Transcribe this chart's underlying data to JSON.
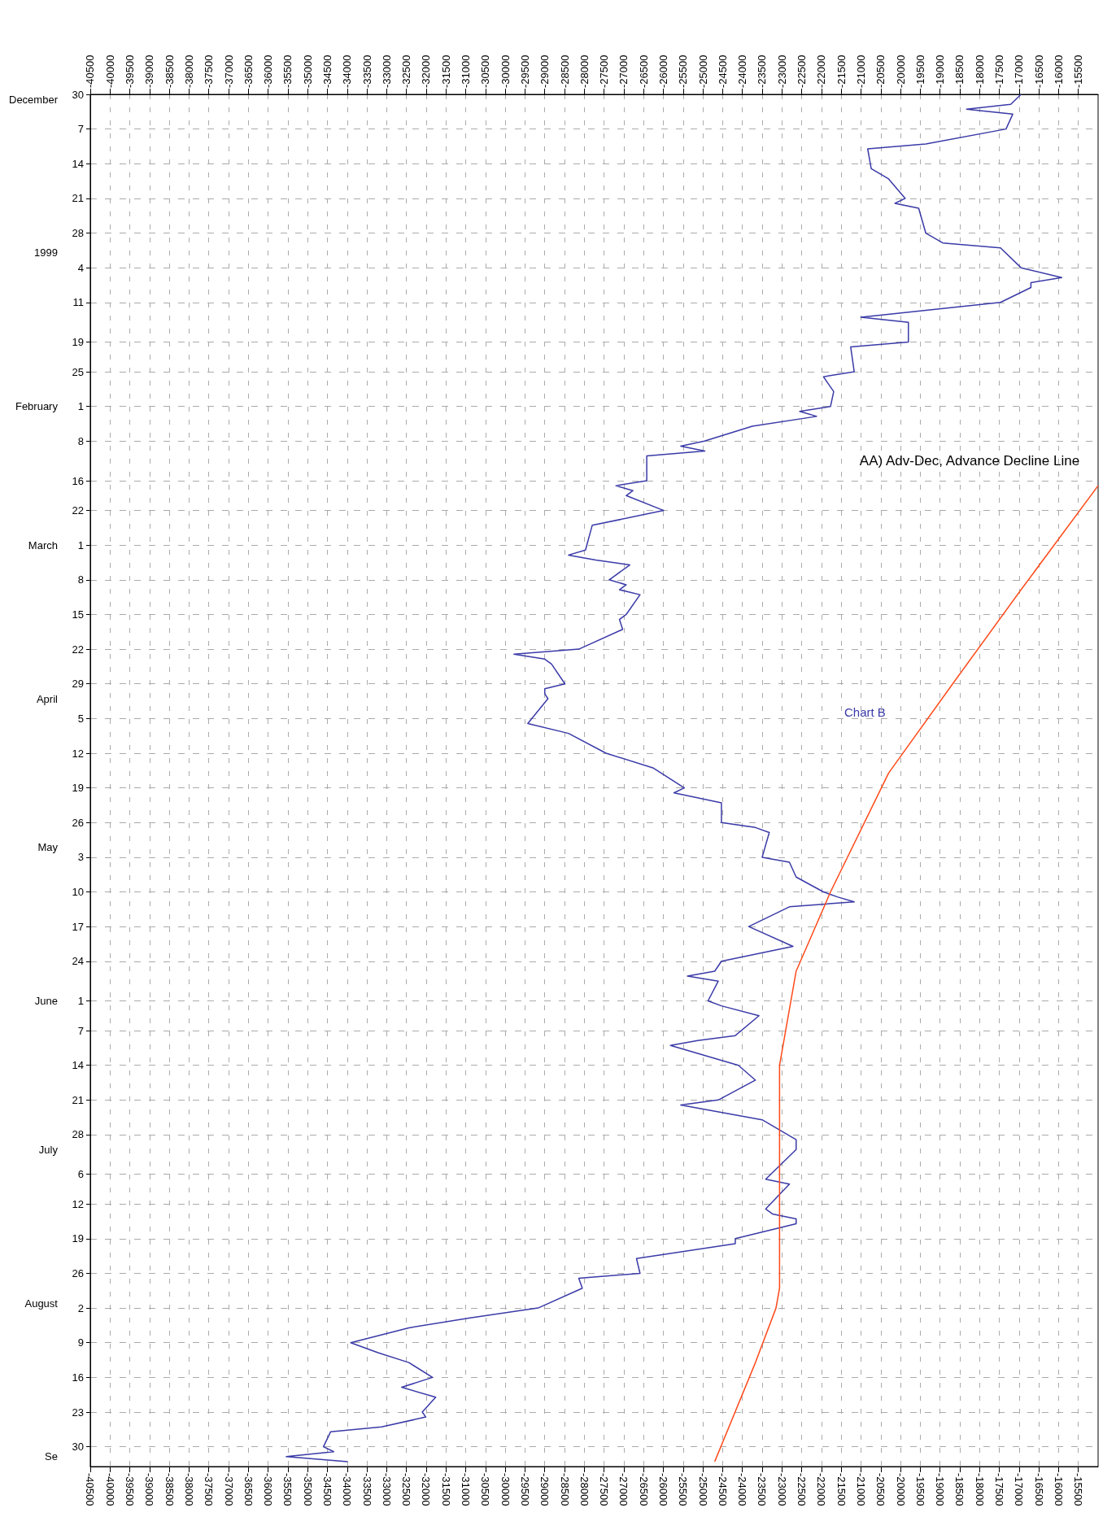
{
  "chart_data": {
    "type": "line",
    "title": "AA) Adv-Dec, Advance Decline Line",
    "annotations": [
      "Chart B"
    ],
    "orientation": "horizontal",
    "ylim": [
      "1999-09-03",
      "1998-11-30"
    ],
    "yticks": [
      {
        "value": "1998-11-30",
        "label": "30"
      },
      {
        "value": "1998-12-07",
        "label": "7"
      },
      {
        "value": "1998-12-14",
        "label": "14"
      },
      {
        "value": "1998-12-21",
        "label": "21"
      },
      {
        "value": "1998-12-28",
        "label": "28"
      },
      {
        "value": "1999-01-04",
        "label": "4"
      },
      {
        "value": "1999-01-11",
        "label": "11"
      },
      {
        "value": "1999-01-19",
        "label": "19"
      },
      {
        "value": "1999-01-25",
        "label": "25"
      },
      {
        "value": "1999-02-01",
        "label": "1"
      },
      {
        "value": "1999-02-08",
        "label": "8"
      },
      {
        "value": "1999-02-16",
        "label": "16"
      },
      {
        "value": "1999-02-22",
        "label": "22"
      },
      {
        "value": "1999-03-01",
        "label": "1"
      },
      {
        "value": "1999-03-08",
        "label": "8"
      },
      {
        "value": "1999-03-15",
        "label": "15"
      },
      {
        "value": "1999-03-22",
        "label": "22"
      },
      {
        "value": "1999-03-29",
        "label": "29"
      },
      {
        "value": "1999-04-05",
        "label": "5"
      },
      {
        "value": "1999-04-12",
        "label": "12"
      },
      {
        "value": "1999-04-19",
        "label": "19"
      },
      {
        "value": "1999-04-26",
        "label": "26"
      },
      {
        "value": "1999-05-03",
        "label": "3"
      },
      {
        "value": "1999-05-10",
        "label": "10"
      },
      {
        "value": "1999-05-17",
        "label": "17"
      },
      {
        "value": "1999-05-24",
        "label": "24"
      },
      {
        "value": "1999-06-01",
        "label": "1"
      },
      {
        "value": "1999-06-07",
        "label": "7"
      },
      {
        "value": "1999-06-14",
        "label": "14"
      },
      {
        "value": "1999-06-21",
        "label": "21"
      },
      {
        "value": "1999-06-28",
        "label": "28"
      },
      {
        "value": "1999-07-06",
        "label": "6"
      },
      {
        "value": "1999-07-12",
        "label": "12"
      },
      {
        "value": "1999-07-19",
        "label": "19"
      },
      {
        "value": "1999-07-26",
        "label": "26"
      },
      {
        "value": "1999-08-02",
        "label": "2"
      },
      {
        "value": "1999-08-09",
        "label": "9"
      },
      {
        "value": "1999-08-16",
        "label": "16"
      },
      {
        "value": "1999-08-23",
        "label": "23"
      },
      {
        "value": "1999-08-30",
        "label": "30"
      }
    ],
    "y2lim": [
      "1999-09-03",
      "1998-11-30"
    ],
    "y2ticks": [
      {
        "value": "1998-12-01",
        "label": "December"
      },
      {
        "value": "1999-01-01",
        "label": "1999"
      },
      {
        "value": "1999-02-01",
        "label": "February"
      },
      {
        "value": "1999-03-01",
        "label": "March"
      },
      {
        "value": "1999-04-01",
        "label": "April"
      },
      {
        "value": "1999-05-01",
        "label": "May"
      },
      {
        "value": "1999-06-01",
        "label": "June"
      },
      {
        "value": "1999-07-01",
        "label": "July"
      },
      {
        "value": "1999-08-01",
        "label": "August"
      },
      {
        "value": "1999-09-01",
        "label": "Se"
      }
    ],
    "xlim": [
      -40500,
      -15000
    ],
    "xticks": [
      -40500,
      -40000,
      -39500,
      -39000,
      -38500,
      -38000,
      -37500,
      -37000,
      -36500,
      -36000,
      -35500,
      -35000,
      -34500,
      -34000,
      -33500,
      -33000,
      -32500,
      -32000,
      -31500,
      -31000,
      -30500,
      -30000,
      -29500,
      -29000,
      -28500,
      -28000,
      -27500,
      -27000,
      -26500,
      -26000,
      -25500,
      -25000,
      -24500,
      -24000,
      -23500,
      -23000,
      -22500,
      -22000,
      -21500,
      -21000,
      -20500,
      -20000,
      -19500,
      -19000,
      -18500,
      -18000,
      -17500,
      -17000,
      -16500,
      -16000,
      -15500
    ],
    "x2lim": [
      -40500,
      -15000
    ],
    "x2ticks": [
      -40500,
      -40000,
      -39500,
      -39000,
      -38500,
      -38000,
      -37500,
      -37000,
      -36500,
      -36000,
      -35500,
      -35000,
      -34500,
      -34000,
      -33500,
      -33000,
      -32500,
      -32000,
      -31500,
      -31000,
      -30500,
      -30000,
      -29500,
      -29000,
      -28500,
      -28000,
      -27500,
      -27000,
      -26500,
      -26000,
      -25500,
      -25000,
      -24500,
      -24000,
      -23500,
      -23000,
      -22500,
      -22000,
      -21500,
      -21000,
      -20500,
      -20000,
      -19500,
      -19000,
      -18500,
      -18000,
      -17500,
      -17000,
      -16500,
      -16000,
      -15500
    ],
    "grid": true,
    "series": [
      {
        "color": "#3a3aa8",
        "x": [
          "1998-11-30",
          "1998-12-02",
          "1998-12-03",
          "1998-12-04",
          "1998-12-07",
          "1998-12-10",
          "1998-12-11",
          "1998-12-15",
          "1998-12-17",
          "1998-12-21",
          "1998-12-22",
          "1998-12-23",
          "1998-12-28",
          "1998-12-30",
          "1998-12-31",
          "1999-01-04",
          "1999-01-06",
          "1999-01-07",
          "1999-01-08",
          "1999-01-11",
          "1999-01-14",
          "1999-01-15",
          "1999-01-19",
          "1999-01-20",
          "1999-01-25",
          "1999-01-26",
          "1999-01-29",
          "1999-02-01",
          "1999-02-02",
          "1999-02-03",
          "1999-02-05",
          "1999-02-08",
          "1999-02-09",
          "1999-02-10",
          "1999-02-11",
          "1999-02-16",
          "1999-02-17",
          "1999-02-18",
          "1999-02-19",
          "1999-02-22",
          "1999-02-25",
          "1999-03-02",
          "1999-03-03",
          "1999-03-04",
          "1999-03-05",
          "1999-03-08",
          "1999-03-09",
          "1999-03-10",
          "1999-03-11",
          "1999-03-15",
          "1999-03-16",
          "1999-03-18",
          "1999-03-22",
          "1999-03-23",
          "1999-03-24",
          "1999-03-25",
          "1999-03-29",
          "1999-03-30",
          "1999-03-31",
          "1999-04-01",
          "1999-04-06",
          "1999-04-08",
          "1999-04-12",
          "1999-04-15",
          "1999-04-19",
          "1999-04-20",
          "1999-04-22",
          "1999-04-26",
          "1999-04-27",
          "1999-04-28",
          "1999-05-03",
          "1999-05-04",
          "1999-05-07",
          "1999-05-10",
          "1999-05-11",
          "1999-05-12",
          "1999-05-13",
          "1999-05-17",
          "1999-05-21",
          "1999-05-24",
          "1999-05-26",
          "1999-05-27",
          "1999-05-28",
          "1999-06-01",
          "1999-06-02",
          "1999-06-04",
          "1999-06-08",
          "1999-06-09",
          "1999-06-10",
          "1999-06-14",
          "1999-06-17",
          "1999-06-21",
          "1999-06-22",
          "1999-06-25",
          "1999-06-29",
          "1999-07-01",
          "1999-07-07",
          "1999-07-08",
          "1999-07-13",
          "1999-07-14",
          "1999-07-15",
          "1999-07-16",
          "1999-07-19",
          "1999-07-20",
          "1999-07-23",
          "1999-07-26",
          "1999-07-27",
          "1999-07-29",
          "1999-08-02",
          "1999-08-04",
          "1999-08-06",
          "1999-08-09",
          "1999-08-11",
          "1999-08-13",
          "1999-08-16",
          "1999-08-18",
          "1999-08-20",
          "1999-08-23",
          "1999-08-24",
          "1999-08-26",
          "1999-08-27",
          "1999-08-30",
          "1999-08-31",
          "1999-09-01",
          "1999-09-02"
        ],
        "values": [
          -16950,
          -17210,
          -18330,
          -17160,
          -17330,
          -19360,
          -20830,
          -20740,
          -20310,
          -19880,
          -20140,
          -19540,
          -19360,
          -18930,
          -17470,
          -16950,
          -15920,
          -16700,
          -16700,
          -17470,
          -21000,
          -19800,
          -19800,
          -21260,
          -21170,
          -21950,
          -21690,
          -21770,
          -22550,
          -22120,
          -23750,
          -24960,
          -25560,
          -24950,
          -26420,
          -26420,
          -27200,
          -26770,
          -26940,
          -25990,
          -27800,
          -27970,
          -28400,
          -27710,
          -26850,
          -27370,
          -26940,
          -27110,
          -26590,
          -26940,
          -27110,
          -27030,
          -28140,
          -29780,
          -29000,
          -28830,
          -28490,
          -29000,
          -29000,
          -28920,
          -29430,
          -28400,
          -27450,
          -26250,
          -25470,
          -25730,
          -24530,
          -24530,
          -23670,
          -23320,
          -23500,
          -22810,
          -22640,
          -21950,
          -21600,
          -21170,
          -22810,
          -23840,
          -22720,
          -24530,
          -24700,
          -25390,
          -24610,
          -24870,
          -24530,
          -23580,
          -24180,
          -25130,
          -25820,
          -24100,
          -23670,
          -24610,
          -25560,
          -23500,
          -22640,
          -22640,
          -23410,
          -22810,
          -23410,
          -23240,
          -22640,
          -22640,
          -24180,
          -24180,
          -26680,
          -26590,
          -28140,
          -28050,
          -29170,
          -30890,
          -32440,
          -33910,
          -33220,
          -32440,
          -31840,
          -32620,
          -31760,
          -32100,
          -32010,
          -33130,
          -34420,
          -34600,
          -34340,
          -35540,
          -33990
        ]
      },
      {
        "color": "#ff4a1a",
        "x": [
          "1999-02-17",
          "1999-03-10",
          "1999-03-29",
          "1999-04-16",
          "1999-05-10",
          "1999-05-26",
          "1999-06-14",
          "1999-07-01",
          "1999-07-29",
          "1999-08-02",
          "1999-08-13",
          "1999-09-02"
        ],
        "values": [
          -15000,
          -16950,
          -18680,
          -20300,
          -21770,
          -22640,
          -23060,
          -23060,
          -23060,
          -23150,
          -23670,
          -24700
        ]
      }
    ]
  }
}
